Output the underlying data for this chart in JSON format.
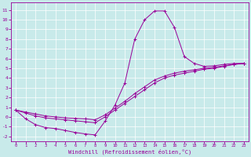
{
  "xlabel": "Windchill (Refroidissement éolien,°C)",
  "background_color": "#c8eaea",
  "line_color": "#990099",
  "grid_color": "#ffffff",
  "x_ticks": [
    0,
    1,
    2,
    3,
    4,
    5,
    6,
    7,
    8,
    9,
    10,
    11,
    12,
    13,
    14,
    15,
    16,
    17,
    18,
    19,
    20,
    21,
    22,
    23
  ],
  "y_ticks": [
    -2,
    -1,
    0,
    1,
    2,
    3,
    4,
    5,
    6,
    7,
    8,
    9,
    10,
    11
  ],
  "ylim": [
    -2.5,
    11.8
  ],
  "xlim": [
    -0.5,
    23.5
  ],
  "s1": [
    0.7,
    -0.2,
    -0.8,
    -1.1,
    -1.2,
    -1.4,
    -1.6,
    -1.75,
    -1.85,
    -0.45,
    1.2,
    3.5,
    8.0,
    10.0,
    10.9,
    10.9,
    9.2,
    6.2,
    5.5,
    5.2,
    5.25,
    5.4,
    5.5,
    5.5
  ],
  "s2": [
    0.7,
    0.4,
    0.1,
    -0.1,
    -0.2,
    -0.3,
    -0.4,
    -0.5,
    -0.6,
    0.0,
    0.7,
    1.4,
    2.1,
    2.8,
    3.5,
    4.0,
    4.3,
    4.5,
    4.7,
    4.9,
    5.0,
    5.2,
    5.4,
    5.5
  ],
  "s3": [
    0.7,
    0.5,
    0.3,
    0.1,
    0.0,
    -0.1,
    -0.15,
    -0.2,
    -0.3,
    0.2,
    0.9,
    1.6,
    2.4,
    3.1,
    3.8,
    4.2,
    4.5,
    4.7,
    4.85,
    5.0,
    5.1,
    5.25,
    5.4,
    5.5
  ]
}
